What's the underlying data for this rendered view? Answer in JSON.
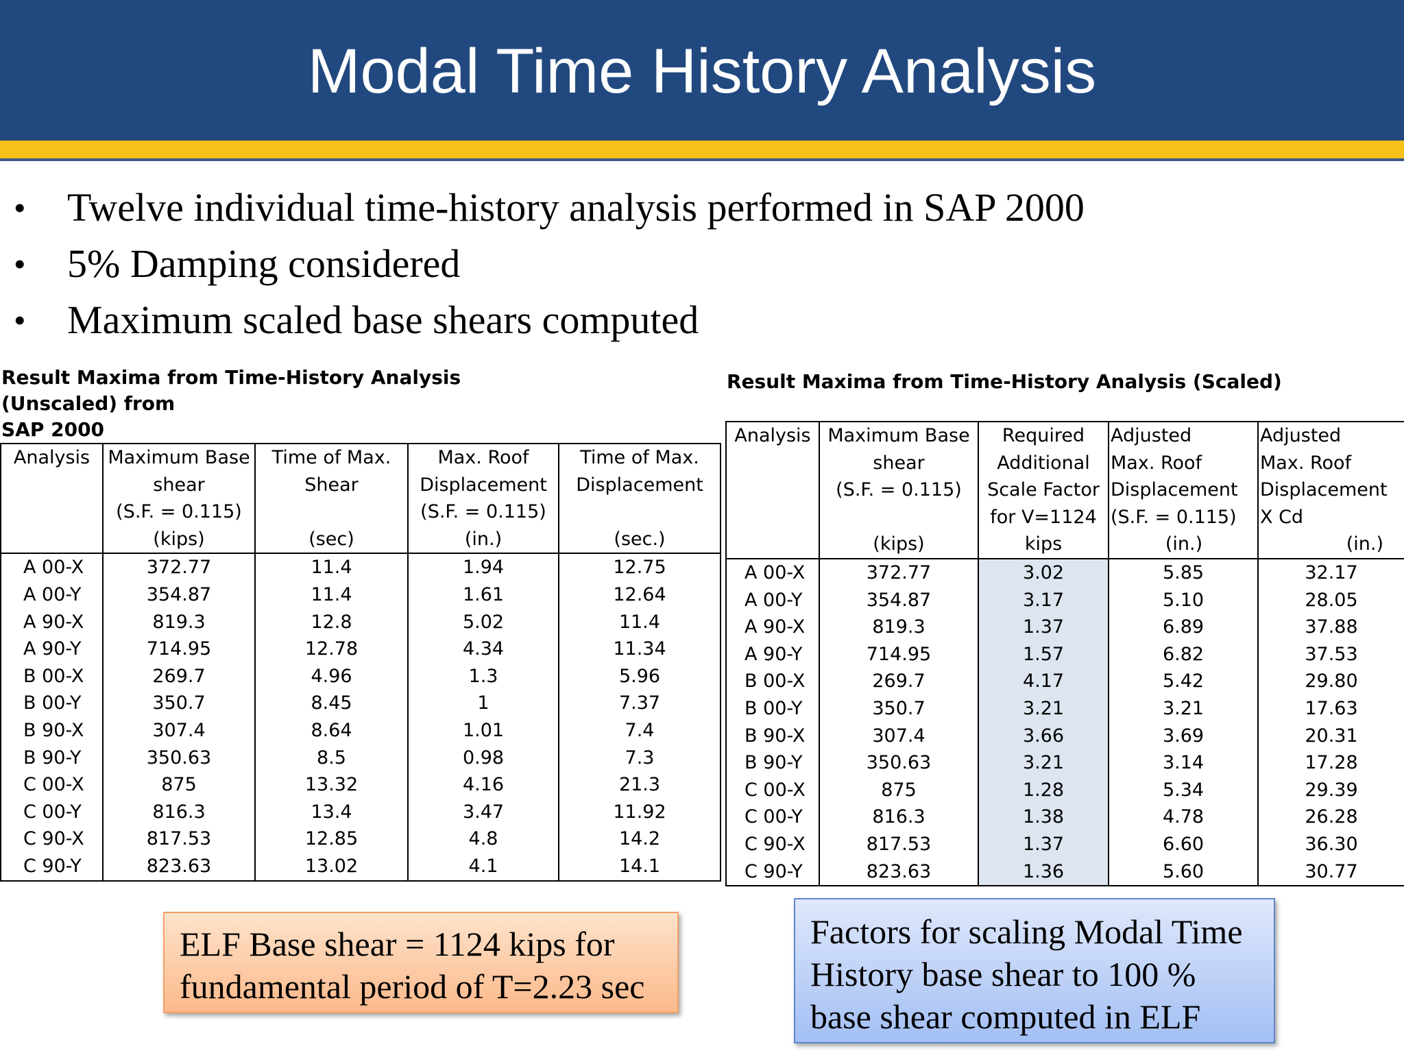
{
  "slide": {
    "title": "Modal Time History Analysis",
    "colors": {
      "header": "#22497f",
      "accent_bar": "#f7c11a",
      "scale_factor_highlight": "#dce5f0"
    }
  },
  "bullets": [
    "Twelve individual time-history analysis performed in SAP 2000",
    "5% Damping considered",
    "Maximum scaled base shears computed"
  ],
  "unscaled_table": {
    "caption_line1": "Result Maxima from Time-History Analysis (Unscaled)  from",
    "caption_line2": "SAP 2000",
    "headers": [
      {
        "lines": [
          "Analysis"
        ],
        "unit": ""
      },
      {
        "lines": [
          "Maximum Base",
          "shear",
          "(S.F. = 0.115)"
        ],
        "unit": "(kips)"
      },
      {
        "lines": [
          "Time of Max.",
          "Shear"
        ],
        "unit": "(sec)"
      },
      {
        "lines": [
          "Max. Roof",
          "Displacement",
          "(S.F. = 0.115)"
        ],
        "unit": "(in.)"
      },
      {
        "lines": [
          "Time of Max.",
          "Displacement"
        ],
        "unit": "(sec.)"
      }
    ],
    "rows": [
      [
        "A 00-X",
        "372.77",
        "11.4",
        "1.94",
        "12.75"
      ],
      [
        "A 00-Y",
        "354.87",
        "11.4",
        "1.61",
        "12.64"
      ],
      [
        "A 90-X",
        "819.3",
        "12.8",
        "5.02",
        "11.4"
      ],
      [
        "A 90-Y",
        "714.95",
        "12.78",
        "4.34",
        "11.34"
      ],
      [
        "B 00-X",
        "269.7",
        "4.96",
        "1.3",
        "5.96"
      ],
      [
        "B 00-Y",
        "350.7",
        "8.45",
        "1",
        "7.37"
      ],
      [
        "B 90-X",
        "307.4",
        "8.64",
        "1.01",
        "7.4"
      ],
      [
        "B 90-Y",
        "350.63",
        "8.5",
        "0.98",
        "7.3"
      ],
      [
        "C 00-X",
        "875",
        "13.32",
        "4.16",
        "21.3"
      ],
      [
        "C 00-Y",
        "816.3",
        "13.4",
        "3.47",
        "11.92"
      ],
      [
        "C 90-X",
        "817.53",
        "12.85",
        "4.8",
        "14.2"
      ],
      [
        "C 90-Y",
        "823.63",
        "13.02",
        "4.1",
        "14.1"
      ]
    ]
  },
  "scaled_table": {
    "caption": "Result Maxima from Time-History Analysis (Scaled)",
    "headers": [
      {
        "lines": [
          "Analysis"
        ],
        "unit": ""
      },
      {
        "lines": [
          "Maximum Base",
          "shear",
          "(S.F. = 0.115)"
        ],
        "unit": "(kips)"
      },
      {
        "lines": [
          "Required",
          "Additional",
          "Scale Factor",
          "for V=1124"
        ],
        "unit": "kips"
      },
      {
        "lines": [
          "Adjusted",
          "Max. Roof",
          "Displacement",
          "(S.F. = 0.115)"
        ],
        "unit": "(in.)"
      },
      {
        "lines": [
          "Adjusted",
          "Max. Roof",
          "Displacement",
          "X Cd"
        ],
        "unit": "(in.)"
      }
    ],
    "rows": [
      [
        "A 00-X",
        "372.77",
        "3.02",
        "5.85",
        "32.17"
      ],
      [
        "A 00-Y",
        "354.87",
        "3.17",
        "5.10",
        "28.05"
      ],
      [
        "A 90-X",
        "819.3",
        "1.37",
        "6.89",
        "37.88"
      ],
      [
        "A 90-Y",
        "714.95",
        "1.57",
        "6.82",
        "37.53"
      ],
      [
        "B 00-X",
        "269.7",
        "4.17",
        "5.42",
        "29.80"
      ],
      [
        "B 00-Y",
        "350.7",
        "3.21",
        "3.21",
        "17.63"
      ],
      [
        "B 90-X",
        "307.4",
        "3.66",
        "3.69",
        "20.31"
      ],
      [
        "B 90-Y",
        "350.63",
        "3.21",
        "3.14",
        "17.28"
      ],
      [
        "C 00-X",
        "875",
        "1.28",
        "5.34",
        "29.39"
      ],
      [
        "C 00-Y",
        "816.3",
        "1.38",
        "4.78",
        "26.28"
      ],
      [
        "C 90-X",
        "817.53",
        "1.37",
        "6.60",
        "36.30"
      ],
      [
        "C 90-Y",
        "823.63",
        "1.36",
        "5.60",
        "30.77"
      ]
    ]
  },
  "callouts": {
    "elf": [
      "ELF Base shear = 1124 kips for",
      "fundamental period of T=2.23 sec"
    ],
    "scaling": [
      "Factors for scaling Modal Time",
      "History base shear to 100 %",
      "base shear computed in ELF"
    ]
  }
}
